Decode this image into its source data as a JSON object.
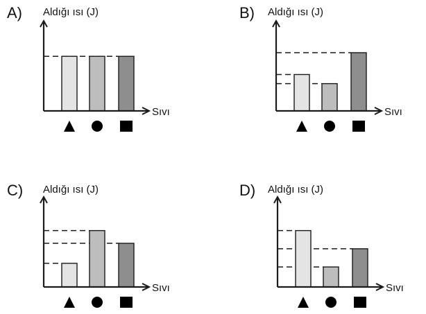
{
  "question": {
    "y_axis_label": "Aldığı ısı (J)",
    "x_axis_label": "Sıvı",
    "symbols": [
      "▲",
      "●",
      "■"
    ],
    "colors": {
      "light": "#e4e4e4",
      "medium": "#bdbdbd",
      "dark": "#8e8e8e",
      "stroke": "#1a1a1a"
    }
  },
  "chart_data": [
    {
      "type": "bar",
      "option": "A)",
      "ylabel": "Aldığı ısı (J)",
      "xlabel": "Sıvı",
      "categories": [
        "▲",
        "●",
        "■"
      ],
      "values": [
        3,
        3,
        3
      ],
      "ylim": [
        0,
        4
      ]
    },
    {
      "type": "bar",
      "option": "B)",
      "ylabel": "Aldığı ısı (J)",
      "xlabel": "Sıvı",
      "categories": [
        "▲",
        "●",
        "■"
      ],
      "values": [
        2,
        1.5,
        3.2
      ],
      "ylim": [
        0,
        4
      ]
    },
    {
      "type": "bar",
      "option": "C)",
      "ylabel": "Aldığı ısı (J)",
      "xlabel": "Sıvı",
      "categories": [
        "▲",
        "●",
        "■"
      ],
      "values": [
        1.3,
        3.1,
        2.4
      ],
      "ylim": [
        0,
        4
      ]
    },
    {
      "type": "bar",
      "option": "D)",
      "ylabel": "Aldığı ısı (J)",
      "xlabel": "Sıvı",
      "categories": [
        "▲",
        "●",
        "■"
      ],
      "values": [
        3.1,
        1.1,
        2.1
      ],
      "ylim": [
        0,
        4
      ]
    }
  ]
}
